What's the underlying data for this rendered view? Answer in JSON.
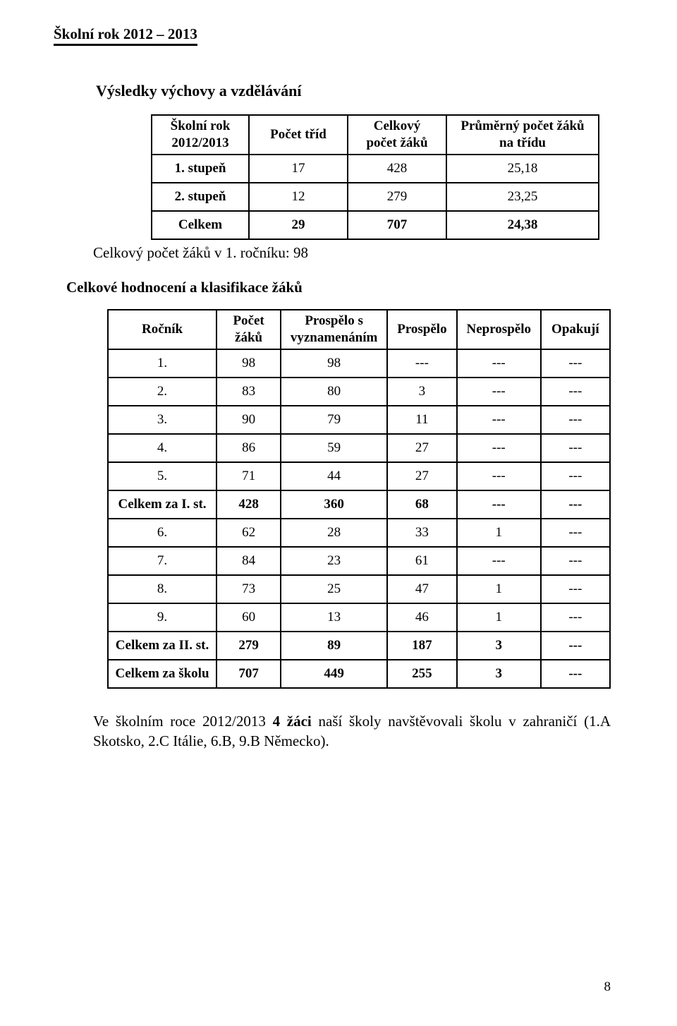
{
  "running_header": "Školní rok 2012 – 2013",
  "section1_title": "Výsledky výchovy a vzdělávání",
  "table1": {
    "headers": [
      "Školní rok\n2012/2013",
      "Počet tříd",
      "Celkový\npočet žáků",
      "Průměrný počet žáků\nna třídu"
    ],
    "rows": [
      [
        "1. stupeň",
        "17",
        "428",
        "25,18"
      ],
      [
        "2. stupeň",
        "12",
        "279",
        "23,25"
      ],
      [
        "Celkem",
        "29",
        "707",
        "24,38"
      ]
    ]
  },
  "note": "Celkový počet žáků v 1. ročníku: 98",
  "section2_title": "Celkové hodnocení a klasifikace žáků",
  "table2": {
    "headers": [
      "Ročník",
      "Počet\nžáků",
      "Prospělo s\nvyznamenáním",
      "Prospělo",
      "Neprospělo",
      "Opakují"
    ],
    "rows": [
      {
        "cells": [
          "1.",
          "98",
          "98",
          "---",
          "---",
          "---"
        ],
        "bold": false
      },
      {
        "cells": [
          "2.",
          "83",
          "80",
          "3",
          "---",
          "---"
        ],
        "bold": false
      },
      {
        "cells": [
          "3.",
          "90",
          "79",
          "11",
          "---",
          "---"
        ],
        "bold": false
      },
      {
        "cells": [
          "4.",
          "86",
          "59",
          "27",
          "---",
          "---"
        ],
        "bold": false
      },
      {
        "cells": [
          "5.",
          "71",
          "44",
          "27",
          "---",
          "---"
        ],
        "bold": false
      },
      {
        "cells": [
          "Celkem za I. st.",
          "428",
          "360",
          "68",
          "---",
          "---"
        ],
        "bold": true
      },
      {
        "cells": [
          "6.",
          "62",
          "28",
          "33",
          "1",
          "---"
        ],
        "bold": false
      },
      {
        "cells": [
          "7.",
          "84",
          "23",
          "61",
          "---",
          "---"
        ],
        "bold": false
      },
      {
        "cells": [
          "8.",
          "73",
          "25",
          "47",
          "1",
          "---"
        ],
        "bold": false
      },
      {
        "cells": [
          "9.",
          "60",
          "13",
          "46",
          "1",
          "---"
        ],
        "bold": false
      },
      {
        "cells": [
          "Celkem za II. st.",
          "279",
          "89",
          "187",
          "3",
          "---"
        ],
        "bold": true
      },
      {
        "cells": [
          "Celkem za školu",
          "707",
          "449",
          "255",
          "3",
          "---"
        ],
        "bold": true
      }
    ]
  },
  "paragraph": {
    "pre": "Ve školním roce 2012/2013 ",
    "bold": "4 žáci",
    "post": " naší školy navštěvovali školu v zahraničí (1.A Skotsko, 2.C Itálie, 6.B, 9.B Německo)."
  },
  "page_number": "8",
  "colors": {
    "background": "#ffffff",
    "text": "#000000",
    "border": "#000000"
  }
}
